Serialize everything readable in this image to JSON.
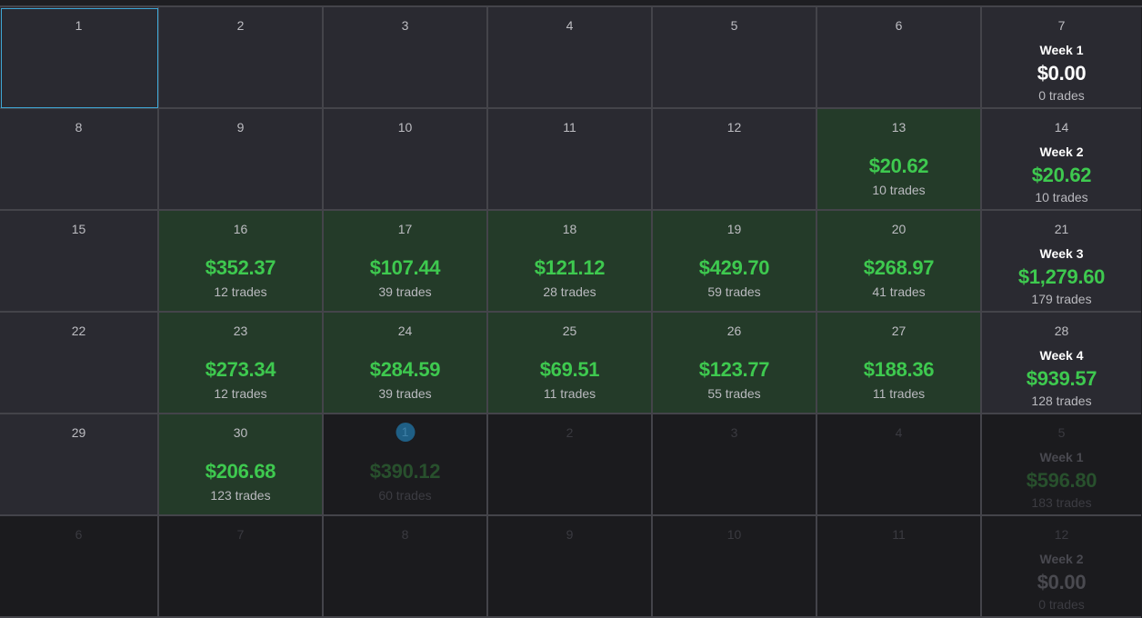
{
  "rows": [
    [
      {
        "day": "1",
        "selected": true
      },
      {
        "day": "2"
      },
      {
        "day": "3"
      },
      {
        "day": "4"
      },
      {
        "day": "5"
      },
      {
        "day": "6"
      },
      {
        "day": "7",
        "week": "Week 1",
        "amount": "$0.00",
        "trades": "0 trades",
        "amount_color": "white"
      }
    ],
    [
      {
        "day": "8"
      },
      {
        "day": "9"
      },
      {
        "day": "10"
      },
      {
        "day": "11"
      },
      {
        "day": "12"
      },
      {
        "day": "13",
        "amount": "$20.62",
        "trades": "10 trades"
      },
      {
        "day": "14",
        "week": "Week 2",
        "amount": "$20.62",
        "trades": "10 trades"
      }
    ],
    [
      {
        "day": "15"
      },
      {
        "day": "16",
        "amount": "$352.37",
        "trades": "12 trades"
      },
      {
        "day": "17",
        "amount": "$107.44",
        "trades": "39 trades"
      },
      {
        "day": "18",
        "amount": "$121.12",
        "trades": "28 trades"
      },
      {
        "day": "19",
        "amount": "$429.70",
        "trades": "59 trades"
      },
      {
        "day": "20",
        "amount": "$268.97",
        "trades": "41 trades"
      },
      {
        "day": "21",
        "week": "Week 3",
        "amount": "$1,279.60",
        "trades": "179 trades"
      }
    ],
    [
      {
        "day": "22"
      },
      {
        "day": "23",
        "amount": "$273.34",
        "trades": "12 trades"
      },
      {
        "day": "24",
        "amount": "$284.59",
        "trades": "39 trades"
      },
      {
        "day": "25",
        "amount": "$69.51",
        "trades": "11 trades"
      },
      {
        "day": "26",
        "amount": "$123.77",
        "trades": "55 trades"
      },
      {
        "day": "27",
        "amount": "$188.36",
        "trades": "11 trades"
      },
      {
        "day": "28",
        "week": "Week 4",
        "amount": "$939.57",
        "trades": "128 trades"
      }
    ],
    [
      {
        "day": "29"
      },
      {
        "day": "30",
        "amount": "$206.68",
        "trades": "123 trades"
      },
      {
        "day": "1",
        "faded": true,
        "today": true,
        "amount": "$390.12",
        "trades": "60 trades"
      },
      {
        "day": "2",
        "faded": true
      },
      {
        "day": "3",
        "faded": true
      },
      {
        "day": "4",
        "faded": true
      },
      {
        "day": "5",
        "faded": true,
        "week": "Week 1",
        "amount": "$596.80",
        "trades": "183 trades"
      }
    ],
    [
      {
        "day": "6",
        "faded": true
      },
      {
        "day": "7",
        "faded": true
      },
      {
        "day": "8",
        "faded": true
      },
      {
        "day": "9",
        "faded": true
      },
      {
        "day": "10",
        "faded": true
      },
      {
        "day": "11",
        "faded": true
      },
      {
        "day": "12",
        "faded": true,
        "week": "Week 2",
        "amount": "$0.00",
        "trades": "0 trades",
        "amount_color": "white"
      }
    ]
  ],
  "colors": {
    "profit": "#3ec94f",
    "profit_cell": "#243b29",
    "cell": "#2a2a31",
    "outside_month_cell": "#1b1b1e",
    "selection_outline": "#3fa7d6",
    "today_badge": "#1f5f85"
  }
}
